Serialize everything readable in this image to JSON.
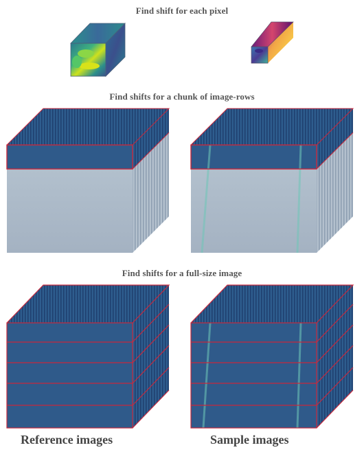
{
  "titles": {
    "pixel": "Find  shift for each pixel",
    "chunk": "Find  shifts for  a chunk of image-rows",
    "full": "Find  shifts for  a full-size image"
  },
  "captions": {
    "reference": "Reference images",
    "sample": "Sample images"
  },
  "colors": {
    "stack_dark": "#2f5a8a",
    "stack_light": "#a9b7c6",
    "frame_red": "#c8283c",
    "bright_line": "#6fc7b8"
  }
}
